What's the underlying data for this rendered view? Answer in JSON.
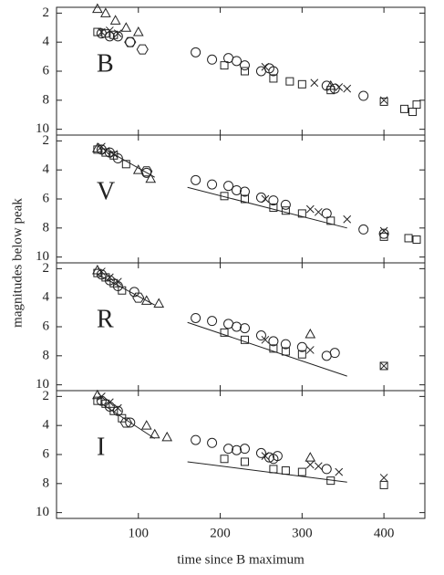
{
  "chart_data": [
    {
      "type": "scatter",
      "label": "B",
      "ylabel": "magnitudes below peak",
      "xlim": [
        0,
        450
      ],
      "ylim": [
        1.6,
        10.4
      ],
      "y_inverted": true,
      "yticks": [
        2,
        4,
        6,
        8,
        10
      ],
      "color": "#222222",
      "series": [
        {
          "marker": "triangle",
          "x": [
            50,
            60,
            72,
            85,
            100,
            335
          ],
          "y": [
            1.7,
            2.0,
            2.5,
            3.0,
            3.3,
            7.0
          ]
        },
        {
          "marker": "circle",
          "x": [
            55,
            65,
            75,
            90,
            170,
            190,
            210,
            220,
            230,
            250,
            260,
            265,
            330,
            340,
            375
          ],
          "y": [
            3.4,
            3.6,
            3.6,
            4.0,
            4.7,
            5.2,
            5.1,
            5.3,
            5.6,
            6.0,
            5.8,
            6.0,
            7.0,
            7.2,
            7.7
          ]
        },
        {
          "marker": "square",
          "x": [
            50,
            60,
            70,
            205,
            230,
            265,
            285,
            300,
            335,
            400,
            425,
            435,
            440
          ],
          "y": [
            3.3,
            3.4,
            3.5,
            5.6,
            6.0,
            6.5,
            6.7,
            6.9,
            7.3,
            8.1,
            8.6,
            8.8,
            8.3
          ]
        },
        {
          "marker": "cross",
          "x": [
            55,
            65,
            75,
            255,
            315,
            345,
            355,
            400
          ],
          "y": [
            3.3,
            3.2,
            3.4,
            5.7,
            6.8,
            7.1,
            7.2,
            8.0
          ]
        },
        {
          "marker": "hexagon",
          "x": [
            90,
            105
          ],
          "y": [
            4.0,
            4.5
          ]
        }
      ],
      "fits": []
    },
    {
      "type": "scatter",
      "label": "V",
      "xlim": [
        0,
        450
      ],
      "ylim": [
        1.6,
        10.4
      ],
      "y_inverted": true,
      "yticks": [
        2,
        4,
        6,
        8,
        10
      ],
      "color": "#222222",
      "series": [
        {
          "marker": "circle",
          "x": [
            55,
            65,
            75,
            110,
            170,
            190,
            210,
            220,
            230,
            250,
            265,
            280,
            330,
            375,
            400
          ],
          "y": [
            2.6,
            2.8,
            3.2,
            4.2,
            4.7,
            5.0,
            5.1,
            5.4,
            5.5,
            5.9,
            6.1,
            6.4,
            7.0,
            8.1,
            8.4
          ]
        },
        {
          "marker": "square",
          "x": [
            50,
            60,
            70,
            85,
            205,
            230,
            265,
            280,
            300,
            335,
            400,
            430,
            440
          ],
          "y": [
            2.6,
            2.8,
            3.0,
            3.6,
            5.8,
            6.0,
            6.6,
            6.8,
            7.0,
            7.5,
            8.6,
            8.7,
            8.8
          ]
        },
        {
          "marker": "triangle",
          "x": [
            50,
            100,
            115
          ],
          "y": [
            2.5,
            4.0,
            4.6
          ]
        },
        {
          "marker": "cross",
          "x": [
            55,
            60,
            70,
            255,
            310,
            320,
            355,
            400
          ],
          "y": [
            2.4,
            2.7,
            2.9,
            6.0,
            6.7,
            6.9,
            7.4,
            8.2
          ]
        },
        {
          "marker": "hexagon",
          "x": [
            110
          ],
          "y": [
            4.1
          ]
        }
      ],
      "fits": [
        {
          "x": [
            60,
            120
          ],
          "y": [
            2.6,
            4.5
          ]
        },
        {
          "x": [
            160,
            355
          ],
          "y": [
            5.2,
            8.0
          ]
        }
      ]
    },
    {
      "type": "scatter",
      "label": "R",
      "xlim": [
        0,
        450
      ],
      "ylim": [
        1.6,
        10.4
      ],
      "y_inverted": true,
      "yticks": [
        2,
        4,
        6,
        8,
        10
      ],
      "color": "#222222",
      "series": [
        {
          "marker": "circle",
          "x": [
            55,
            65,
            75,
            95,
            170,
            190,
            210,
            220,
            230,
            250,
            265,
            280,
            300,
            330,
            340
          ],
          "y": [
            2.4,
            2.8,
            3.2,
            3.6,
            5.4,
            5.6,
            5.8,
            6.0,
            6.1,
            6.6,
            7.0,
            7.2,
            7.4,
            8.0,
            7.8
          ]
        },
        {
          "marker": "square",
          "x": [
            50,
            60,
            70,
            80,
            205,
            230,
            265,
            280,
            300,
            400
          ],
          "y": [
            2.3,
            2.6,
            3.0,
            3.5,
            6.4,
            6.9,
            7.5,
            7.7,
            7.9,
            8.7
          ]
        },
        {
          "marker": "triangle",
          "x": [
            50,
            110,
            125,
            310
          ],
          "y": [
            2.1,
            4.2,
            4.4,
            6.5
          ]
        },
        {
          "marker": "cross",
          "x": [
            55,
            65,
            75,
            255,
            310,
            400
          ],
          "y": [
            2.2,
            2.6,
            2.9,
            6.9,
            7.6,
            8.7
          ]
        },
        {
          "marker": "hexagon",
          "x": [
            100
          ],
          "y": [
            4.0
          ]
        }
      ],
      "fits": [
        {
          "x": [
            50,
            120
          ],
          "y": [
            2.4,
            4.5
          ]
        },
        {
          "x": [
            160,
            355
          ],
          "y": [
            5.7,
            9.4
          ]
        }
      ]
    },
    {
      "type": "scatter",
      "label": "I",
      "xlabel": "time since B maximum",
      "xlim": [
        0,
        450
      ],
      "xticks": [
        100,
        200,
        300,
        400
      ],
      "ylim": [
        1.6,
        10.4
      ],
      "y_inverted": true,
      "yticks": [
        2,
        4,
        6,
        8,
        10
      ],
      "color": "#222222",
      "series": [
        {
          "marker": "circle",
          "x": [
            55,
            65,
            75,
            90,
            170,
            190,
            210,
            220,
            230,
            250,
            260,
            265,
            270,
            330
          ],
          "y": [
            2.3,
            2.7,
            3.0,
            3.8,
            5.0,
            5.2,
            5.6,
            5.7,
            5.6,
            5.9,
            6.2,
            6.3,
            6.1,
            7.0
          ]
        },
        {
          "marker": "square",
          "x": [
            50,
            60,
            70,
            80,
            205,
            230,
            265,
            280,
            300,
            335,
            400
          ],
          "y": [
            2.3,
            2.5,
            3.0,
            3.5,
            6.3,
            6.5,
            7.0,
            7.1,
            7.2,
            7.8,
            8.1
          ]
        },
        {
          "marker": "triangle",
          "x": [
            50,
            110,
            120,
            135,
            310
          ],
          "y": [
            1.9,
            4.0,
            4.6,
            4.8,
            6.2
          ]
        },
        {
          "marker": "cross",
          "x": [
            55,
            65,
            75,
            255,
            310,
            320,
            345,
            400
          ],
          "y": [
            2.0,
            2.4,
            2.8,
            6.1,
            6.7,
            6.8,
            7.2,
            7.6
          ]
        },
        {
          "marker": "hexagon",
          "x": [
            85
          ],
          "y": [
            3.8
          ]
        }
      ],
      "fits": [
        {
          "x": [
            55,
            120
          ],
          "y": [
            2.5,
            4.9
          ]
        },
        {
          "x": [
            160,
            355
          ],
          "y": [
            6.5,
            7.9
          ]
        }
      ]
    }
  ]
}
